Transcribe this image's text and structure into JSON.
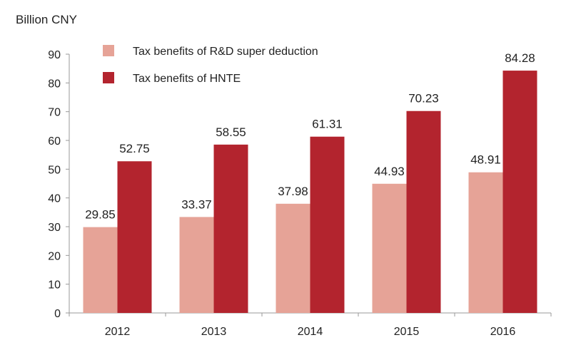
{
  "unit_label": "Billion CNY",
  "chart_data": {
    "type": "bar",
    "ylabel": "Billion CNY",
    "categories": [
      "2012",
      "2013",
      "2014",
      "2015",
      "2016"
    ],
    "series": [
      {
        "name": "Tax benefits of R&D super deduction",
        "values": [
          29.85,
          33.37,
          37.98,
          44.93,
          48.91
        ],
        "color": "#e6a397"
      },
      {
        "name": "Tax benefits of HNTE",
        "values": [
          52.75,
          58.55,
          61.31,
          70.23,
          84.28
        ],
        "color": "#b3242e"
      }
    ],
    "data_labels": [
      [
        "29.85",
        "33.37",
        "37.98",
        "44.93",
        "48.91"
      ],
      [
        "52.75",
        "58.55",
        "61.31",
        "70.23",
        "84.28"
      ]
    ],
    "ylim": [
      0,
      90
    ],
    "yticks": [
      "0",
      "10",
      "20",
      "30",
      "40",
      "50",
      "60",
      "70",
      "80",
      "90"
    ],
    "legend_position": "top-left",
    "grid": false
  }
}
